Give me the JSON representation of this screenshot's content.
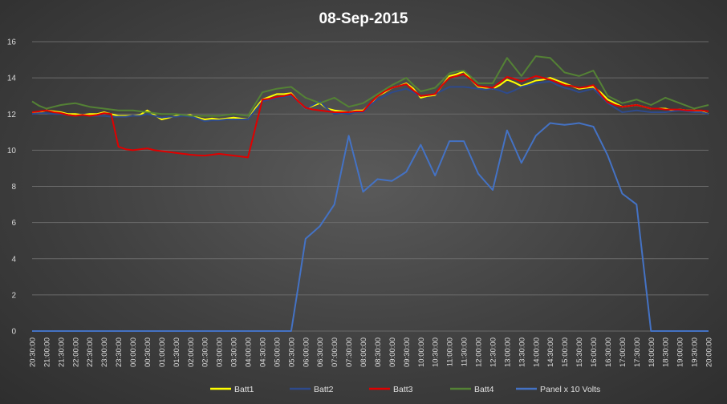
{
  "chart_data": {
    "type": "line",
    "title": "08-Sep-2015",
    "xlabel": "",
    "ylabel": "",
    "ylim": [
      0,
      16
    ],
    "yticks": [
      0,
      2,
      4,
      6,
      8,
      10,
      12,
      14,
      16
    ],
    "grid": "horizontal",
    "legend_position": "bottom",
    "categories": [
      "20:30:00",
      "21:00:00",
      "21:30:00",
      "22:00:00",
      "22:30:00",
      "23:00:00",
      "23:30:00",
      "00:00:00",
      "00:30:00",
      "01:00:00",
      "01:30:00",
      "02:00:00",
      "02:30:00",
      "03:00:00",
      "03:30:00",
      "04:00:00",
      "04:30:00",
      "05:00:00",
      "05:30:00",
      "06:00:00",
      "06:30:00",
      "07:00:00",
      "07:30:00",
      "08:00:00",
      "08:30:00",
      "09:00:00",
      "09:30:00",
      "10:00:00",
      "10:30:00",
      "11:00:00",
      "11:30:00",
      "12:00:00",
      "12:30:00",
      "13:00:00",
      "13:30:00",
      "14:00:00",
      "14:30:00",
      "15:00:00",
      "15:30:00",
      "16:00:00",
      "16:30:00",
      "17:00:00",
      "17:30:00",
      "18:00:00",
      "18:30:00",
      "19:00:00",
      "19:30:00",
      "20:00:00"
    ],
    "xticks": [
      "20:30:00",
      "21:00:00",
      "21:30:00",
      "22:00:00",
      "22:30:00",
      "23:00:00",
      "23:30:00",
      "00:00:00",
      "00:30:00",
      "01:00:00",
      "01:30:00",
      "02:00:00",
      "02:30:00",
      "03:00:00",
      "03:30:00",
      "04:00:00",
      "04:30:00",
      "05:00:00",
      "05:30:00",
      "06:00:00",
      "06:30:00",
      "07:00:00",
      "07:30:00",
      "08:00:00",
      "08:30:00",
      "09:00:00",
      "09:30:00",
      "10:00:00",
      "10:30:00",
      "11:00:00",
      "11:30:00",
      "12:00:00",
      "12:30:00",
      "13:00:00",
      "13:30:00",
      "14:00:00",
      "14:30:00",
      "15:00:00",
      "15:30:00",
      "16:00:00",
      "16:30:00",
      "17:00:00",
      "17:30:00",
      "18:00:00",
      "18:30:00",
      "19:00:00",
      "19:30:00",
      "20:00:00"
    ],
    "x": [
      0,
      0.5,
      1,
      1.5,
      2,
      2.5,
      3,
      3.5,
      4,
      4.5,
      5,
      5.5,
      6,
      6.5,
      7,
      7.5,
      8,
      8.5,
      9,
      9.5,
      10,
      10.5,
      11,
      11.5,
      12,
      12.5,
      13,
      13.5,
      14,
      14.5,
      15,
      15.5,
      16,
      16.5,
      17,
      17.5,
      18,
      18.5,
      19,
      19.5,
      20,
      20.5,
      21,
      21.5,
      22,
      22.5,
      23,
      23.5,
      24,
      24.5,
      25,
      25.5,
      26,
      26.5,
      27,
      27.5,
      28,
      28.5,
      29,
      29.5,
      30,
      30.5,
      31,
      31.5,
      32,
      32.5,
      33,
      33.5,
      34,
      34.5,
      35,
      35.5,
      36,
      36.5,
      37,
      37.5,
      38,
      38.5,
      39,
      39.5,
      40,
      40.5,
      41,
      41.5,
      42,
      42.5,
      43,
      43.5,
      44,
      44.5,
      45,
      45.5,
      46,
      46.5,
      47
    ],
    "series": [
      {
        "name": "Batt1",
        "color": "#ffff00",
        "values": [
          12.1,
          12.1,
          12.2,
          12.15,
          12.1,
          12.0,
          12.0,
          11.95,
          12.0,
          12.0,
          12.1,
          12.0,
          11.9,
          11.9,
          11.9,
          11.95,
          12.2,
          11.95,
          11.7,
          11.8,
          11.9,
          11.9,
          11.95,
          11.8,
          11.7,
          11.75,
          11.7,
          11.75,
          11.8,
          11.75,
          11.7,
          12.3,
          12.8,
          12.95,
          13.1,
          13.1,
          13.15,
          12.7,
          12.3,
          12.45,
          12.6,
          12.3,
          12.2,
          12.15,
          12.1,
          12.2,
          12.2,
          12.55,
          13.0,
          13.2,
          13.45,
          13.55,
          13.7,
          13.4,
          12.9,
          13.0,
          13.05,
          13.6,
          14.1,
          14.2,
          14.35,
          13.9,
          13.5,
          13.45,
          13.4,
          13.6,
          13.9,
          13.75,
          13.55,
          13.7,
          13.85,
          13.9,
          14.0,
          13.85,
          13.7,
          13.55,
          13.4,
          13.45,
          13.5,
          13.2,
          12.8,
          12.6,
          12.4,
          12.45,
          12.5,
          12.4,
          12.3,
          12.3,
          12.3,
          12.2,
          12.25,
          12.2,
          12.2,
          12.15,
          12.0
        ]
      },
      {
        "name": "Batt2",
        "color": "#2e4a8c",
        "values": [
          12.0,
          12.05,
          12.05,
          12.0,
          12.0,
          11.95,
          11.9,
          11.95,
          11.9,
          11.9,
          11.9,
          11.85,
          11.85,
          11.85,
          11.9,
          11.9,
          12.0,
          11.9,
          11.8,
          11.85,
          11.85,
          11.9,
          11.85,
          11.75,
          11.6,
          11.65,
          11.65,
          11.7,
          11.7,
          11.7,
          11.7,
          12.2,
          12.7,
          12.8,
          12.9,
          12.95,
          13.0,
          12.7,
          12.3,
          12.5,
          12.7,
          12.3,
          12.0,
          12.05,
          12.0,
          12.1,
          12.1,
          12.5,
          12.8,
          13.0,
          13.2,
          13.3,
          13.4,
          13.2,
          13.0,
          13.05,
          13.1,
          13.3,
          13.5,
          13.5,
          13.5,
          13.45,
          13.4,
          13.35,
          13.4,
          13.3,
          13.15,
          13.3,
          13.5,
          13.6,
          13.7,
          13.75,
          13.8,
          13.6,
          13.45,
          13.35,
          13.2,
          13.3,
          13.4,
          13.0,
          12.6,
          12.35,
          12.1,
          12.15,
          12.2,
          12.15,
          12.1,
          12.1,
          12.1,
          12.15,
          12.2,
          12.15,
          12.1,
          12.1,
          12.0
        ]
      },
      {
        "name": "Batt3",
        "color": "#e00000",
        "values": [
          12.1,
          12.15,
          12.2,
          12.1,
          12.05,
          11.95,
          11.9,
          11.95,
          11.9,
          11.95,
          12.05,
          12.0,
          10.2,
          10.05,
          10.0,
          10.05,
          10.1,
          10.0,
          9.95,
          9.9,
          9.85,
          9.8,
          9.75,
          9.72,
          9.7,
          9.75,
          9.8,
          9.75,
          9.7,
          9.65,
          9.6,
          11.2,
          12.8,
          12.85,
          12.95,
          13.0,
          13.1,
          12.7,
          12.35,
          12.25,
          12.2,
          12.15,
          12.1,
          12.1,
          12.1,
          12.15,
          12.15,
          12.6,
          13.0,
          13.25,
          13.45,
          13.55,
          13.65,
          13.3,
          13.0,
          13.05,
          13.1,
          13.6,
          14.0,
          14.1,
          14.2,
          13.9,
          13.55,
          13.5,
          13.45,
          13.75,
          14.05,
          13.95,
          13.8,
          13.95,
          14.1,
          14.0,
          13.9,
          13.75,
          13.6,
          13.55,
          13.45,
          13.5,
          13.6,
          13.1,
          12.65,
          12.5,
          12.4,
          12.45,
          12.5,
          12.4,
          12.3,
          12.3,
          12.25,
          12.25,
          12.25,
          12.2,
          12.2,
          12.2,
          12.15
        ]
      },
      {
        "name": "Batt4",
        "color": "#548235",
        "values": [
          12.7,
          12.45,
          12.3,
          12.4,
          12.5,
          12.55,
          12.6,
          12.5,
          12.4,
          12.35,
          12.3,
          12.25,
          12.2,
          12.2,
          12.2,
          12.15,
          12.1,
          12.05,
          12.0,
          12.0,
          12.0,
          11.95,
          11.9,
          11.9,
          11.9,
          11.9,
          11.9,
          11.95,
          12.0,
          11.95,
          11.9,
          12.55,
          13.2,
          13.3,
          13.4,
          13.45,
          13.5,
          13.2,
          12.9,
          12.75,
          12.6,
          12.75,
          12.9,
          12.65,
          12.4,
          12.5,
          12.6,
          12.85,
          13.1,
          13.35,
          13.6,
          13.8,
          14.0,
          13.6,
          13.25,
          13.35,
          13.45,
          13.85,
          14.25,
          14.35,
          14.4,
          14.05,
          13.7,
          13.7,
          13.7,
          14.4,
          15.1,
          14.6,
          14.1,
          14.65,
          15.2,
          15.15,
          15.1,
          14.7,
          14.3,
          14.2,
          14.1,
          14.25,
          14.4,
          13.7,
          13.0,
          12.8,
          12.6,
          12.7,
          12.8,
          12.65,
          12.5,
          12.7,
          12.9,
          12.75,
          12.6,
          12.45,
          12.3,
          12.4,
          12.5
        ]
      },
      {
        "name": "Panel x 10 Volts",
        "color": "#4472c4",
        "values": [
          0,
          0,
          0,
          0,
          0,
          0,
          0,
          0,
          0,
          0,
          0,
          0,
          0,
          0,
          0,
          0,
          0,
          0,
          0,
          0,
          0,
          0,
          0,
          0,
          0,
          0,
          0,
          0,
          0,
          0,
          0,
          0,
          0,
          0,
          0,
          0,
          0,
          2.5,
          5.1,
          5.45,
          5.8,
          6.4,
          7.0,
          8.9,
          10.8,
          9.25,
          7.7,
          8.05,
          8.4,
          8.35,
          8.3,
          8.55,
          8.8,
          9.55,
          10.3,
          9.45,
          8.6,
          9.55,
          10.5,
          10.5,
          10.5,
          9.6,
          8.7,
          8.25,
          7.8,
          9.45,
          11.1,
          10.2,
          9.3,
          10.05,
          10.8,
          11.15,
          11.5,
          11.45,
          11.4,
          11.45,
          11.5,
          11.4,
          11.3,
          10.5,
          9.7,
          8.65,
          7.6,
          7.3,
          7.0,
          3.5,
          0,
          0,
          0,
          0,
          0,
          0,
          0,
          0,
          0
        ]
      }
    ]
  }
}
